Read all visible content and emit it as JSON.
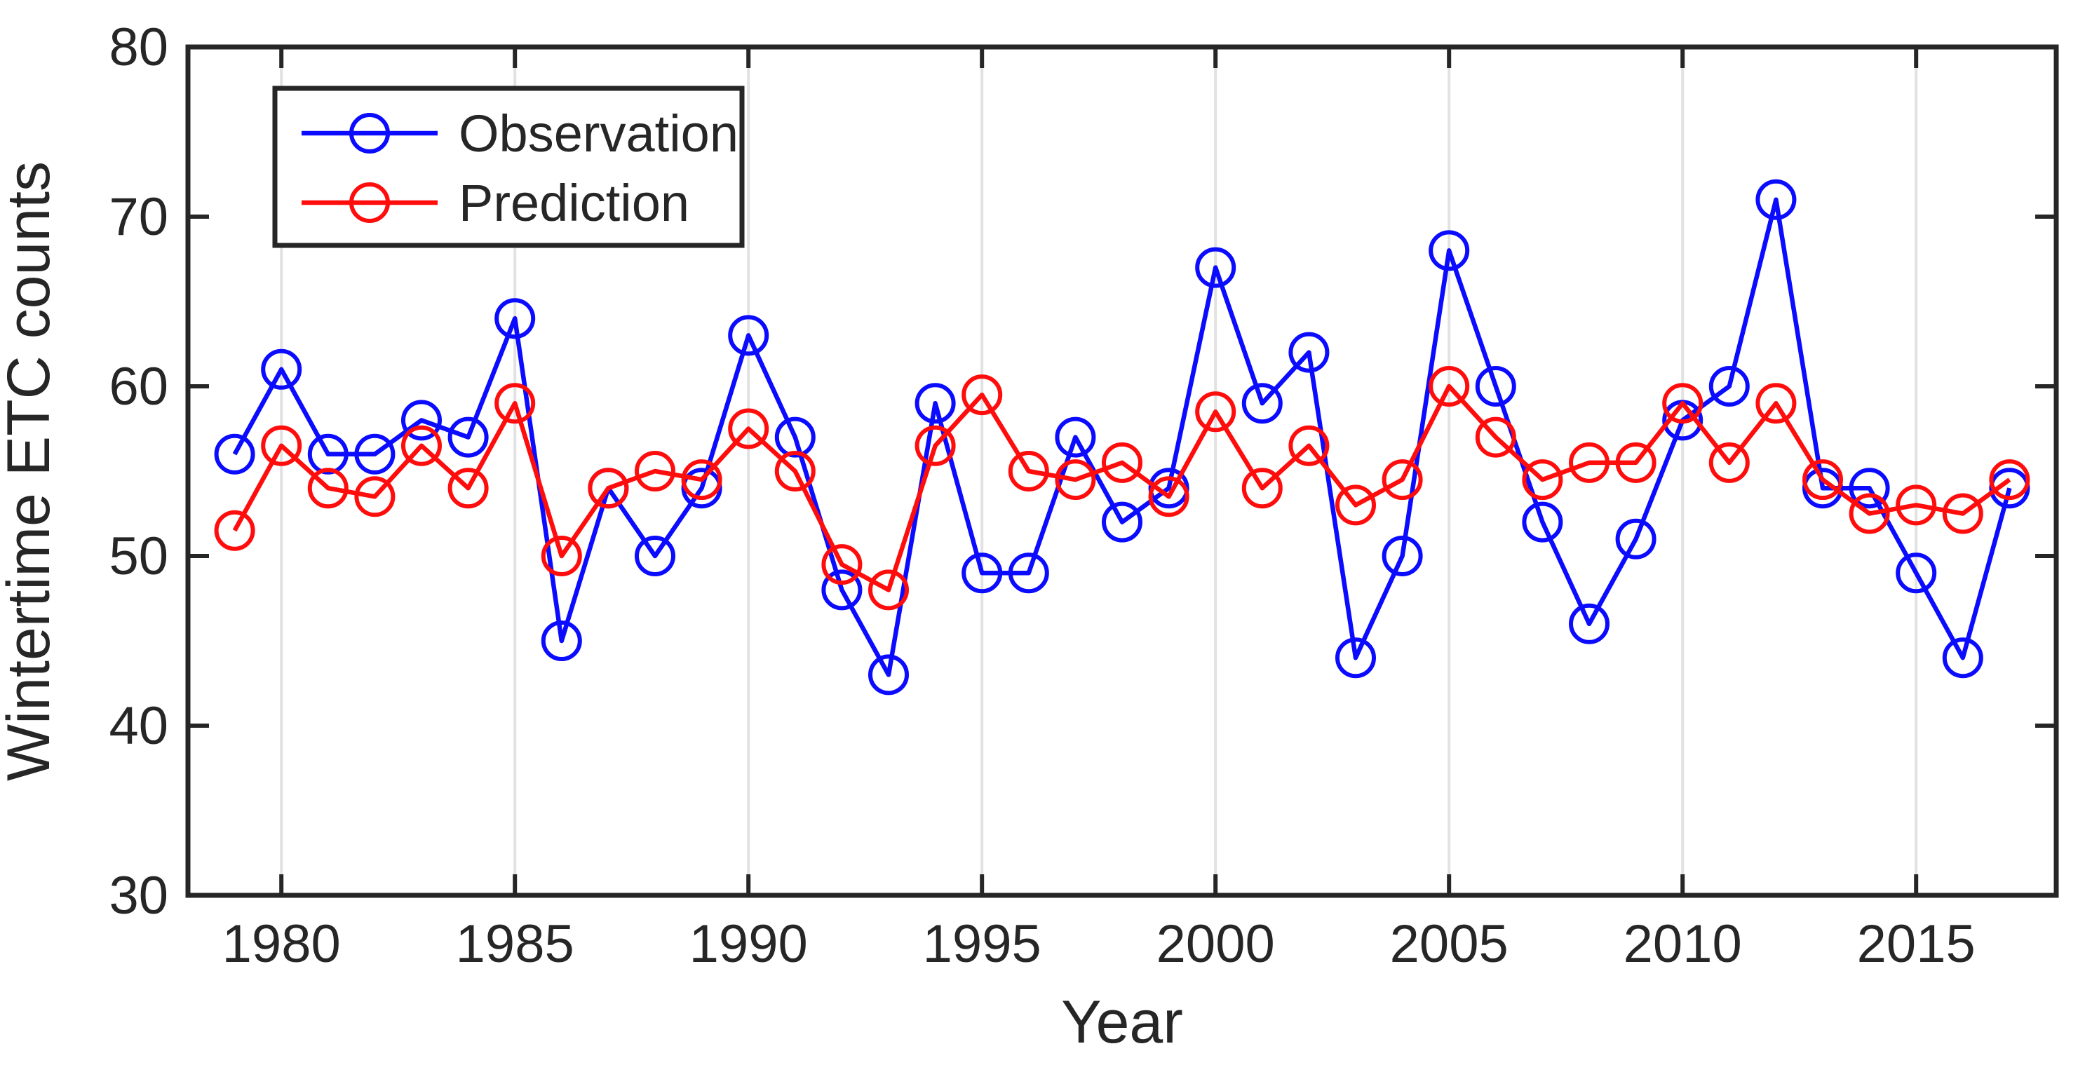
{
  "figure": {
    "background": "#ffffff",
    "axis_color": "#262626",
    "grid_color": "#e2e2e2",
    "tick_label_color": "#262626",
    "legend": {
      "entries": [
        {
          "label": "Observation",
          "color": "#0b0bff"
        },
        {
          "label": "Prediction",
          "color": "#ff0d0d"
        }
      ],
      "position": "top-left"
    }
  },
  "chart_data": {
    "type": "line",
    "title": "",
    "xlabel": "Year",
    "ylabel": "Wintertime ETC counts",
    "xlim": [
      1978,
      2018
    ],
    "ylim": [
      30,
      80
    ],
    "xticks": [
      1980,
      1985,
      1990,
      1995,
      2000,
      2005,
      2010,
      2015
    ],
    "yticks": [
      30,
      40,
      50,
      60,
      70,
      80
    ],
    "grid": "vertical-only",
    "legend_position": "top-left",
    "marker": "open-circle",
    "x": [
      1979,
      1980,
      1981,
      1982,
      1983,
      1984,
      1985,
      1986,
      1987,
      1988,
      1989,
      1990,
      1991,
      1992,
      1993,
      1994,
      1995,
      1996,
      1997,
      1998,
      1999,
      2000,
      2001,
      2002,
      2003,
      2004,
      2005,
      2006,
      2007,
      2008,
      2009,
      2010,
      2011,
      2012,
      2013,
      2014,
      2015,
      2016,
      2017
    ],
    "series": [
      {
        "name": "Observation",
        "color": "#0b0bff",
        "values": [
          56,
          61,
          56,
          56,
          58,
          57,
          64,
          45,
          54,
          50,
          54,
          63,
          57,
          48,
          43,
          59,
          49,
          49,
          57,
          52,
          54,
          67,
          59,
          62,
          44,
          50,
          68,
          60,
          52,
          46,
          51,
          58,
          60,
          71,
          54,
          54,
          49,
          44,
          54
        ]
      },
      {
        "name": "Prediction",
        "color": "#ff0d0d",
        "values": [
          51.5,
          56.5,
          54,
          53.5,
          56.5,
          54,
          59,
          50,
          54,
          55,
          54.5,
          57.5,
          55,
          49.5,
          48,
          56.5,
          59.5,
          55,
          54.5,
          55.5,
          53.5,
          58.5,
          54,
          56.5,
          53,
          54.5,
          60,
          57,
          54.5,
          55.5,
          55.5,
          59,
          55.5,
          59,
          54.5,
          52.5,
          53,
          52.5,
          54.5
        ]
      }
    ]
  }
}
